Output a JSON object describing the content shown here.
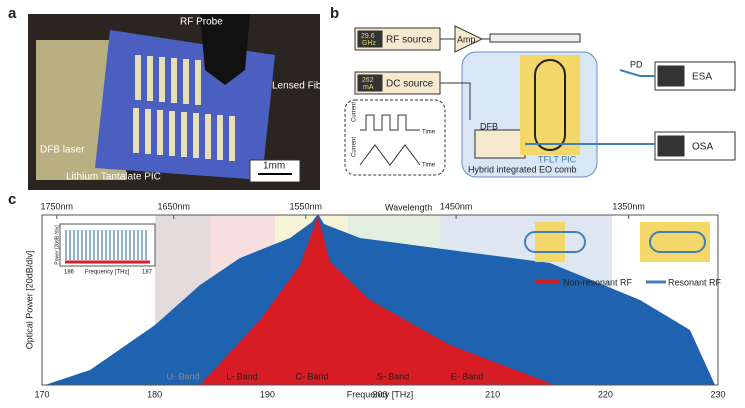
{
  "panel_letters": [
    "a",
    "b",
    "c"
  ],
  "panel_a": {
    "rf_probe": "RF Probe",
    "lensed_fiber": "Lensed Fiber",
    "dfb_laser": "DFB laser",
    "pic": "Lithium Tantalate PIC",
    "scale_bar": "1mm"
  },
  "panel_b": {
    "rf_value": "29.6",
    "rf_unit": "GHz",
    "rf_source": "RF source",
    "amp": "Amp.",
    "dc_value": "262",
    "dc_unit": "mA",
    "dc_source": "DC source",
    "current_1": "Current",
    "time_1": "Time",
    "current_2": "Current",
    "time_2": "Time",
    "dfb": "DFB",
    "pic": "TFLT PIC",
    "comb": "Hybrid integrated EO comb",
    "pd": "PD",
    "esa": "ESA",
    "osa": "OSA"
  },
  "panel_c": {
    "y_label": "Optical Power [20dB/div]",
    "x_label": "Frequency [THz]",
    "top_label": "Wavelength",
    "xlim": [
      170,
      230
    ],
    "xticks": [
      170,
      180,
      190,
      200,
      210,
      220,
      230
    ],
    "wavelength_ticks": [
      {
        "value": 1750,
        "label": "1750nm"
      },
      {
        "value": 1650,
        "label": "1650nm"
      },
      {
        "value": 1550,
        "label": "1550nm"
      },
      {
        "value": 1450,
        "label": "1450nm"
      },
      {
        "value": 1350,
        "label": "1350nm"
      }
    ],
    "bands": [
      "U- Band",
      "L- Band",
      "C- Band",
      "S- Band",
      "E- Band"
    ],
    "legend": [
      "Non-resonant RF",
      "Resonant RF"
    ],
    "inset": {
      "y_label": "Power [20dB /div]",
      "x_label": "Frequency [THz]",
      "x_left": "186",
      "x_right": "187"
    }
  }
}
